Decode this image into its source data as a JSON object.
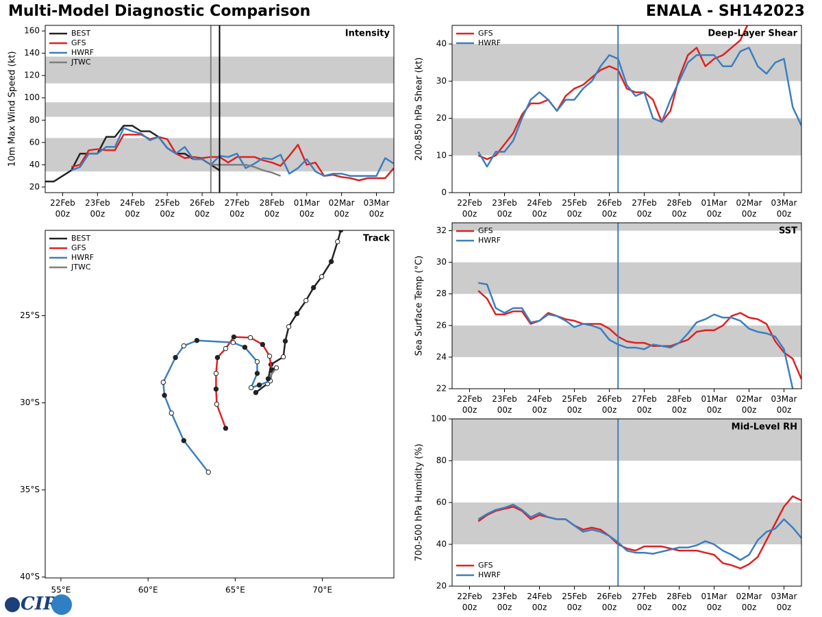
{
  "header": {
    "title": "Multi-Model Diagnostic Comparison",
    "storm": "ENALA - SH142023"
  },
  "logo": "CIRA",
  "chart_data": [
    {
      "type": "line",
      "title": "Intensity",
      "ylabel": "10m Max Wind Speed (kt)",
      "x": [
        -0.5,
        -0.25,
        0,
        0.25,
        0.5,
        0.75,
        1,
        1.25,
        1.5,
        1.75,
        2,
        2.25,
        2.5,
        2.75,
        3,
        3.25,
        3.5,
        3.75,
        4,
        4.25,
        4.5,
        4.75,
        5,
        5.25,
        5.5,
        5.75,
        6,
        6.25,
        6.5,
        6.75,
        7,
        7.25,
        7.5,
        7.75,
        8,
        8.25,
        8.5,
        8.75,
        9,
        9.25,
        9.5
      ],
      "xlim": [
        -0.5,
        9.5
      ],
      "xticks": [
        {
          "value": 0,
          "label": "22Feb\n00z"
        },
        {
          "value": 1,
          "label": "23Feb\n00z"
        },
        {
          "value": 2,
          "label": "24Feb\n00z"
        },
        {
          "value": 3,
          "label": "25Feb\n00z"
        },
        {
          "value": 4,
          "label": "26Feb\n00z"
        },
        {
          "value": 5,
          "label": "27Feb\n00z"
        },
        {
          "value": 6,
          "label": "28Feb\n00z"
        },
        {
          "value": 7,
          "label": "01Mar\n00z"
        },
        {
          "value": 8,
          "label": "02Mar\n00z"
        },
        {
          "value": 9,
          "label": "03Mar\n00z"
        }
      ],
      "ylim": [
        15,
        165
      ],
      "yticks": [
        20,
        40,
        60,
        80,
        100,
        120,
        140,
        160
      ],
      "bands": [
        [
          34,
          64
        ],
        [
          83,
          96
        ],
        [
          113,
          137
        ]
      ],
      "band_color": "#cccccc",
      "vlines": [
        {
          "value": 4.25,
          "color": "#7f7f7f"
        },
        {
          "value": 4.5,
          "color": "#000000"
        }
      ],
      "legend": "upper left",
      "series": [
        {
          "name": "BEST",
          "color": "#222222",
          "values": [
            25,
            25,
            30,
            35,
            50,
            50,
            50,
            65,
            65,
            75,
            75,
            70,
            70,
            65,
            55,
            50,
            50,
            45,
            45,
            40,
            35,
            null,
            null,
            null,
            null,
            null,
            null,
            null,
            null,
            null,
            null,
            null,
            null,
            null,
            null,
            null,
            null,
            null,
            null,
            null,
            null
          ]
        },
        {
          "name": "GFS",
          "color": "#e02020",
          "values": [
            null,
            null,
            null,
            38,
            40,
            53,
            54,
            53,
            53,
            67,
            67,
            67,
            63,
            65,
            63,
            50,
            46,
            47,
            46,
            47,
            47,
            42,
            47,
            47,
            47,
            44,
            42,
            39,
            48,
            58,
            40,
            42,
            30,
            31,
            29,
            28,
            26,
            28,
            28,
            28,
            37
          ]
        },
        {
          "name": "HWRF",
          "color": "#3a7ebf",
          "values": [
            null,
            null,
            null,
            35,
            38,
            50,
            50,
            56,
            56,
            73,
            70,
            68,
            62,
            65,
            55,
            50,
            56,
            45,
            45,
            40,
            48,
            47,
            50,
            37,
            41,
            46,
            45,
            49,
            32,
            37,
            45,
            34,
            30,
            32,
            32,
            30,
            30,
            30,
            30,
            46,
            41
          ]
        },
        {
          "name": "JTWC",
          "color": "#7f7f7f",
          "values": [
            null,
            null,
            null,
            null,
            null,
            null,
            null,
            null,
            null,
            null,
            null,
            null,
            null,
            null,
            null,
            null,
            null,
            null,
            null,
            40,
            40,
            40,
            40,
            40,
            38,
            35,
            33,
            30,
            null,
            null,
            null,
            null,
            null,
            null,
            null,
            null,
            null,
            null,
            null,
            null,
            null
          ]
        }
      ]
    },
    {
      "type": "track",
      "title": "Track",
      "xlim": [
        54.1,
        74.1
      ],
      "ylim": [
        -40.05,
        -20.1
      ],
      "xticks": [
        {
          "value": 55,
          "label": "55°E"
        },
        {
          "value": 60,
          "label": "60°E"
        },
        {
          "value": 65,
          "label": "65°E"
        },
        {
          "value": 70,
          "label": "70°E"
        }
      ],
      "yticks": [
        {
          "value": -25,
          "label": "25°S"
        },
        {
          "value": -30,
          "label": "30°S"
        },
        {
          "value": -35,
          "label": "35°S"
        },
        {
          "value": -40,
          "label": "40°S"
        }
      ],
      "legend": "upper left",
      "series": [
        {
          "name": "BEST",
          "color": "#222222",
          "x": [
            71.06,
            70.87,
            70.51,
            69.96,
            69.49,
            69.06,
            68.54,
            68.07,
            67.87,
            67.76,
            67.05,
            66.85,
            66.18
          ],
          "values": [
            -20.08,
            -20.75,
            -21.89,
            -22.76,
            -23.39,
            -24.13,
            -24.88,
            -25.63,
            -26.46,
            -27.36,
            -27.8,
            -28.9,
            -29.41
          ]
        },
        {
          "name": "GFS",
          "color": "#e02020",
          "x": [
            67.09,
            66.97,
            66.57,
            65.87,
            64.92,
            64.45,
            63.98,
            63.9,
            63.9,
            63.94,
            64.45
          ],
          "values": [
            -28.15,
            -27.32,
            -26.65,
            -26.26,
            -26.22,
            -26.89,
            -27.4,
            -28.31,
            -29.21,
            -30.08,
            -31.46
          ]
        },
        {
          "name": "HWRF",
          "color": "#3a7ebf",
          "x": [
            67.13,
            67.01,
            66.38,
            65.91,
            66.26,
            66.26,
            65.55,
            64.88,
            62.8,
            62.05,
            61.57,
            60.87,
            60.94,
            61.34,
            62.05,
            63.46
          ],
          "values": [
            -28.11,
            -28.74,
            -28.98,
            -29.13,
            -28.31,
            -27.64,
            -26.81,
            -26.54,
            -26.42,
            -26.73,
            -27.4,
            -28.82,
            -29.57,
            -30.59,
            -32.17,
            -33.98
          ]
        },
        {
          "name": "JTWC",
          "color": "#7f7f7f",
          "x": [
            66.89,
            67.36
          ],
          "values": [
            -28.62,
            -27.99
          ]
        }
      ]
    },
    {
      "type": "line",
      "title": "Deep-Layer Shear",
      "ylabel": "200-850 hPa Shear (kt)",
      "x": [
        -0.5,
        -0.25,
        0,
        0.25,
        0.5,
        0.75,
        1,
        1.25,
        1.5,
        1.75,
        2,
        2.25,
        2.5,
        2.75,
        3,
        3.25,
        3.5,
        3.75,
        4,
        4.25,
        4.5,
        4.75,
        5,
        5.25,
        5.5,
        5.75,
        6,
        6.25,
        6.5,
        6.75,
        7,
        7.25,
        7.5,
        7.75,
        8,
        8.25,
        8.5,
        8.75,
        9,
        9.25,
        9.5
      ],
      "xlim": [
        -0.5,
        9.5
      ],
      "xticks": [
        {
          "value": 0,
          "label": "22Feb\n00z"
        },
        {
          "value": 1,
          "label": "23Feb\n00z"
        },
        {
          "value": 2,
          "label": "24Feb\n00z"
        },
        {
          "value": 3,
          "label": "25Feb\n00z"
        },
        {
          "value": 4,
          "label": "26Feb\n00z"
        },
        {
          "value": 5,
          "label": "27Feb\n00z"
        },
        {
          "value": 6,
          "label": "28Feb\n00z"
        },
        {
          "value": 7,
          "label": "01Mar\n00z"
        },
        {
          "value": 8,
          "label": "02Mar\n00z"
        },
        {
          "value": 9,
          "label": "03Mar\n00z"
        }
      ],
      "ylim": [
        0,
        45
      ],
      "yticks": [
        0,
        10,
        20,
        30,
        40
      ],
      "bands": [
        [
          10,
          20
        ],
        [
          30,
          40
        ]
      ],
      "band_color": "#cccccc",
      "vlines": [
        {
          "value": 4.25,
          "color": "#3a7ebf"
        }
      ],
      "legend": "upper left",
      "series": [
        {
          "name": "GFS",
          "color": "#e02020",
          "values": [
            null,
            null,
            null,
            10,
            9,
            10,
            13,
            16,
            21,
            24,
            24,
            25,
            22,
            26,
            28,
            29,
            31,
            33,
            34,
            33,
            28,
            27,
            27,
            25,
            19,
            22,
            31,
            37,
            39,
            34,
            36,
            37,
            39,
            41,
            46,
            null,
            null,
            null,
            null,
            null,
            null
          ]
        },
        {
          "name": "HWRF",
          "color": "#3a7ebf",
          "values": [
            null,
            null,
            null,
            11,
            7,
            11,
            11,
            14,
            20,
            25,
            27,
            25,
            22,
            25,
            25,
            28,
            30,
            34,
            37,
            36,
            29,
            26,
            27,
            20,
            19,
            25,
            30,
            35,
            37,
            37,
            37,
            34,
            34,
            38,
            39,
            34,
            32,
            35,
            36,
            23,
            18
          ]
        }
      ]
    },
    {
      "type": "line",
      "title": "SST",
      "ylabel": "Sea Surface Temp (°C)",
      "x": [
        -0.5,
        -0.25,
        0,
        0.25,
        0.5,
        0.75,
        1,
        1.25,
        1.5,
        1.75,
        2,
        2.25,
        2.5,
        2.75,
        3,
        3.25,
        3.5,
        3.75,
        4,
        4.25,
        4.5,
        4.75,
        5,
        5.25,
        5.5,
        5.75,
        6,
        6.25,
        6.5,
        6.75,
        7,
        7.25,
        7.5,
        7.75,
        8,
        8.25,
        8.5,
        8.75,
        9,
        9.25,
        9.5
      ],
      "xlim": [
        -0.5,
        9.5
      ],
      "xticks": [
        {
          "value": 0,
          "label": "22Feb\n00z"
        },
        {
          "value": 1,
          "label": "23Feb\n00z"
        },
        {
          "value": 2,
          "label": "24Feb\n00z"
        },
        {
          "value": 3,
          "label": "25Feb\n00z"
        },
        {
          "value": 4,
          "label": "26Feb\n00z"
        },
        {
          "value": 5,
          "label": "27Feb\n00z"
        },
        {
          "value": 6,
          "label": "28Feb\n00z"
        },
        {
          "value": 7,
          "label": "01Mar\n00z"
        },
        {
          "value": 8,
          "label": "02Mar\n00z"
        },
        {
          "value": 9,
          "label": "03Mar\n00z"
        }
      ],
      "ylim": [
        22,
        32.5
      ],
      "yticks": [
        22,
        24,
        26,
        28,
        30,
        32
      ],
      "bands": [
        [
          24,
          26
        ],
        [
          28,
          30
        ],
        [
          32,
          34
        ]
      ],
      "band_color": "#cccccc",
      "vlines": [
        {
          "value": 4.25,
          "color": "#3a7ebf"
        }
      ],
      "legend": "upper left",
      "series": [
        {
          "name": "GFS",
          "color": "#e02020",
          "values": [
            null,
            null,
            null,
            28.2,
            27.7,
            26.7,
            26.7,
            26.9,
            26.9,
            26.1,
            26.3,
            26.8,
            26.6,
            26.4,
            26.3,
            26.1,
            26.1,
            26.1,
            25.8,
            25.3,
            25.0,
            24.9,
            24.9,
            24.7,
            24.7,
            24.7,
            24.9,
            25.1,
            25.6,
            25.7,
            25.7,
            26.0,
            26.6,
            26.8,
            26.5,
            26.4,
            26.1,
            25.0,
            24.3,
            23.9,
            22.6
          ]
        },
        {
          "name": "HWRF",
          "color": "#3a7ebf",
          "values": [
            null,
            null,
            null,
            28.7,
            28.6,
            27.1,
            26.8,
            27.1,
            27.1,
            26.2,
            26.3,
            26.7,
            26.6,
            26.3,
            25.9,
            26.1,
            26.0,
            25.8,
            25.1,
            24.8,
            24.6,
            24.6,
            24.5,
            24.8,
            24.7,
            24.6,
            24.9,
            25.5,
            26.2,
            26.4,
            26.7,
            26.5,
            26.5,
            26.3,
            25.8,
            25.6,
            25.5,
            25.3,
            24.5,
            22.0,
            null
          ]
        }
      ]
    },
    {
      "type": "line",
      "title": "Mid-Level RH",
      "ylabel": "700-500 hPa Humidity (%)",
      "x": [
        -0.5,
        -0.25,
        0,
        0.25,
        0.5,
        0.75,
        1,
        1.25,
        1.5,
        1.75,
        2,
        2.25,
        2.5,
        2.75,
        3,
        3.25,
        3.5,
        3.75,
        4,
        4.25,
        4.5,
        4.75,
        5,
        5.25,
        5.5,
        5.75,
        6,
        6.25,
        6.5,
        6.75,
        7,
        7.25,
        7.5,
        7.75,
        8,
        8.25,
        8.5,
        8.75,
        9,
        9.25,
        9.5
      ],
      "xlim": [
        -0.5,
        9.5
      ],
      "xticks": [
        {
          "value": 0,
          "label": "22Feb\n00z"
        },
        {
          "value": 1,
          "label": "23Feb\n00z"
        },
        {
          "value": 2,
          "label": "24Feb\n00z"
        },
        {
          "value": 3,
          "label": "25Feb\n00z"
        },
        {
          "value": 4,
          "label": "26Feb\n00z"
        },
        {
          "value": 5,
          "label": "27Feb\n00z"
        },
        {
          "value": 6,
          "label": "28Feb\n00z"
        },
        {
          "value": 7,
          "label": "01Mar\n00z"
        },
        {
          "value": 8,
          "label": "02Mar\n00z"
        },
        {
          "value": 9,
          "label": "03Mar\n00z"
        }
      ],
      "ylim": [
        20,
        100
      ],
      "yticks": [
        20,
        40,
        60,
        80,
        100
      ],
      "bands": [
        [
          40,
          60
        ],
        [
          80,
          100
        ]
      ],
      "band_color": "#cccccc",
      "vlines": [
        {
          "value": 4.25,
          "color": "#3a7ebf"
        }
      ],
      "legend": "lower left",
      "series": [
        {
          "name": "GFS",
          "color": "#e02020",
          "values": [
            null,
            null,
            null,
            51,
            54,
            56,
            57,
            58,
            56,
            52,
            54,
            53,
            52,
            52,
            49,
            47,
            48,
            47,
            44,
            40,
            38,
            37,
            39,
            39,
            39,
            38,
            37,
            37,
            37,
            36,
            35,
            31,
            30,
            28.5,
            30.5,
            34,
            42,
            50,
            58,
            63,
            61
          ]
        },
        {
          "name": "HWRF",
          "color": "#3a7ebf",
          "values": [
            null,
            null,
            null,
            52,
            54.5,
            56.5,
            57.5,
            59,
            56.5,
            53,
            55,
            53,
            52,
            52,
            49,
            46,
            47,
            46,
            44,
            41,
            37,
            36,
            36,
            35.5,
            36.5,
            37.5,
            38.5,
            38.5,
            39.5,
            41.5,
            40,
            37,
            35,
            32.5,
            35,
            42,
            46,
            47.5,
            52,
            48,
            43
          ]
        }
      ]
    }
  ]
}
